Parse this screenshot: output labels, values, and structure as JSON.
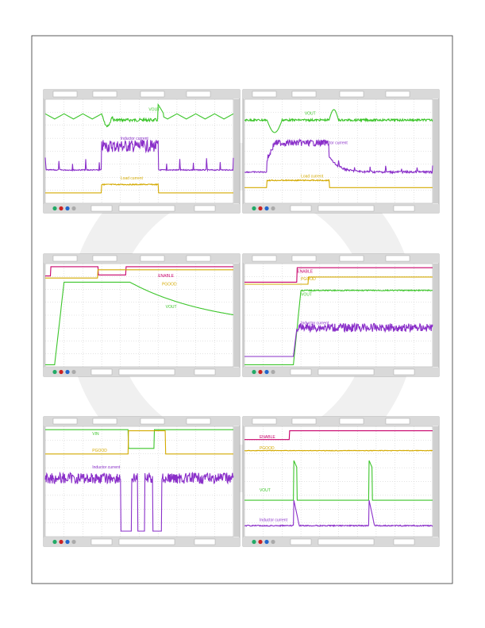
{
  "panels": [
    {
      "labels": [
        "VOUT",
        "Inductor current",
        "Load current"
      ]
    },
    {
      "labels": [
        "VOUT",
        "Inductor current",
        "Load current"
      ]
    },
    {
      "labels": [
        "ENABLE",
        "PGOOD",
        "VOUT"
      ]
    },
    {
      "labels": [
        "ENABLE",
        "PGOOD",
        "VOUT",
        "Inductor current"
      ]
    },
    {
      "labels": [
        "VIN",
        "PGOOD",
        "Inductor current"
      ]
    },
    {
      "labels": [
        "ENABLE",
        "PGOOD",
        "VOUT",
        "Inductor current"
      ]
    }
  ]
}
